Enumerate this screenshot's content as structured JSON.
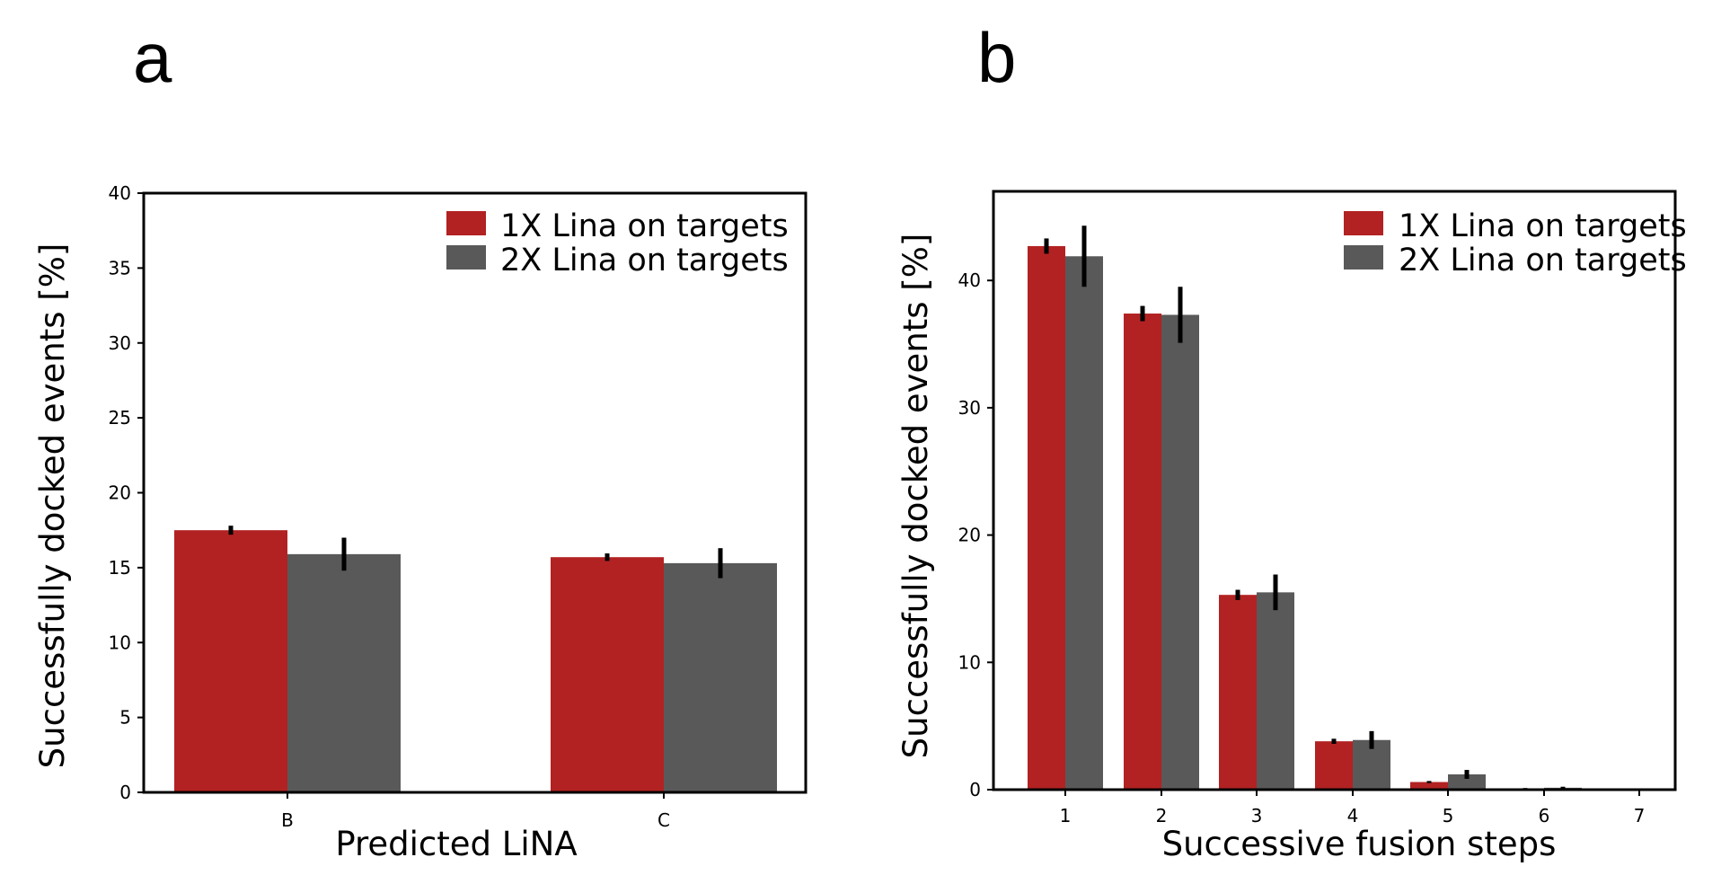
{
  "panels": [
    {
      "letter": "a"
    },
    {
      "letter": "b"
    }
  ],
  "colors": {
    "series1": "#b22222",
    "series2": "#595959",
    "error": "#000000"
  },
  "chart_data": [
    {
      "type": "bar",
      "title": "",
      "xlabel": "Predicted LiNA",
      "ylabel": "Successfully docked events [%]",
      "categories": [
        "B",
        "C"
      ],
      "ylim": [
        0,
        40
      ],
      "yticks": [
        0,
        5,
        10,
        15,
        20,
        25,
        30,
        35,
        40
      ],
      "grid": false,
      "legend_position": "top-right",
      "series": [
        {
          "name": "1X Lina on targets",
          "values": [
            17.5,
            15.7
          ],
          "errors": [
            0.3,
            0.25
          ]
        },
        {
          "name": "2X Lina on targets",
          "values": [
            15.9,
            15.3
          ],
          "errors": [
            1.1,
            1.0
          ]
        }
      ]
    },
    {
      "type": "bar",
      "title": "",
      "xlabel": "Successive fusion steps",
      "ylabel": "Successfully docked events [%]",
      "categories": [
        "1",
        "2",
        "3",
        "4",
        "5",
        "6",
        "7"
      ],
      "ylim": [
        0,
        47
      ],
      "yticks": [
        0,
        10,
        20,
        30,
        40
      ],
      "grid": false,
      "legend_position": "top-right",
      "series": [
        {
          "name": "1X Lina on targets",
          "values": [
            42.7,
            37.4,
            15.3,
            3.8,
            0.6,
            0.1,
            0.0
          ],
          "errors": [
            0.6,
            0.6,
            0.4,
            0.2,
            0.08,
            0.03,
            0.01
          ]
        },
        {
          "name": "2X Lina on targets",
          "values": [
            41.9,
            37.3,
            15.5,
            3.9,
            1.2,
            0.15,
            0.02
          ],
          "errors": [
            2.4,
            2.2,
            1.4,
            0.7,
            0.35,
            0.08,
            0.02
          ]
        }
      ]
    }
  ]
}
